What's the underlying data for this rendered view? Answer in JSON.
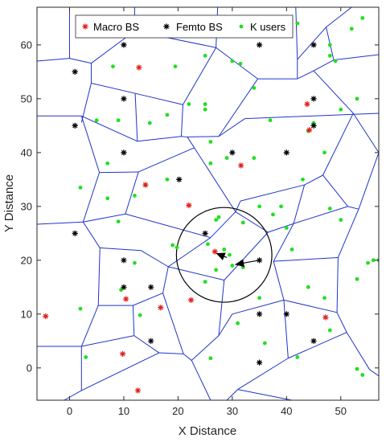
{
  "chart_data": {
    "type": "scatter",
    "xlabel": "X Distance",
    "ylabel": "Y Distance",
    "xlim": [
      -6,
      57
    ],
    "ylim": [
      -6,
      67
    ],
    "xticks": [
      0,
      10,
      20,
      30,
      40,
      50
    ],
    "yticks": [
      0,
      10,
      20,
      30,
      40,
      50,
      60
    ],
    "grid": false,
    "legend_placement": "top-center",
    "legend": [
      "Macro BS",
      "Femto BS",
      "K users"
    ],
    "colors": {
      "macro": "#e0201e",
      "femto": "#000000",
      "users": "#1fe01f",
      "voronoi": "#1f35c8",
      "circle": "#000000",
      "arrow": "#000000"
    },
    "series": [
      {
        "name": "Macro BS",
        "marker": "asterisk",
        "points": [
          [
            12.8,
            55.8
          ],
          [
            43.8,
            49
          ],
          [
            44.2,
            44.2
          ],
          [
            14,
            34
          ],
          [
            31.6,
            37.6
          ],
          [
            22,
            30.2
          ],
          [
            26.8,
            21.6
          ],
          [
            10.4,
            12.8
          ],
          [
            16.8,
            11.2
          ],
          [
            22.4,
            12.6
          ],
          [
            -4.4,
            9.6
          ],
          [
            47.2,
            9.4
          ],
          [
            9.8,
            2.6
          ],
          [
            12.6,
            -4.2
          ]
        ]
      },
      {
        "name": "Femto BS",
        "marker": "asterisk",
        "points": [
          [
            10,
            60
          ],
          [
            1,
            55
          ],
          [
            10,
            50
          ],
          [
            1,
            45
          ],
          [
            10,
            40
          ],
          [
            20.2,
            35
          ],
          [
            30,
            40
          ],
          [
            40,
            40
          ],
          [
            35,
            60
          ],
          [
            45,
            60
          ],
          [
            45,
            50
          ],
          [
            45,
            45
          ],
          [
            25,
            25
          ],
          [
            1,
            25
          ],
          [
            10,
            20
          ],
          [
            35,
            20
          ],
          [
            10,
            15
          ],
          [
            15,
            15
          ],
          [
            35,
            10
          ],
          [
            40,
            10
          ],
          [
            45,
            5
          ],
          [
            15,
            5
          ],
          [
            35,
            1
          ]
        ]
      },
      {
        "name": "K users",
        "marker": "dot",
        "points": [
          [
            3,
            65
          ],
          [
            9,
            64
          ],
          [
            14,
            64
          ],
          [
            29,
            63
          ],
          [
            42,
            64
          ],
          [
            52,
            63
          ],
          [
            38,
            62
          ],
          [
            48,
            60
          ],
          [
            48,
            58
          ],
          [
            49,
            57
          ],
          [
            54,
            65
          ],
          [
            8,
            56
          ],
          [
            19.5,
            56
          ],
          [
            31.5,
            56.5
          ],
          [
            34,
            52
          ],
          [
            25,
            48
          ],
          [
            25,
            58
          ],
          [
            30,
            57
          ],
          [
            5,
            46
          ],
          [
            9,
            46
          ],
          [
            14.8,
            45.5
          ],
          [
            18,
            47
          ],
          [
            22,
            49
          ],
          [
            25,
            49
          ],
          [
            50,
            48
          ],
          [
            53,
            50
          ],
          [
            37,
            46
          ],
          [
            44,
            44
          ],
          [
            45,
            45.5
          ],
          [
            7,
            38
          ],
          [
            18,
            35
          ],
          [
            26,
            42
          ],
          [
            29,
            39
          ],
          [
            34,
            39
          ],
          [
            26,
            38
          ],
          [
            47,
            40
          ],
          [
            43,
            35
          ],
          [
            35,
            30
          ],
          [
            37.5,
            28.5
          ],
          [
            39,
            30
          ],
          [
            48,
            29.6
          ],
          [
            50,
            27.5
          ],
          [
            2,
            33.5
          ],
          [
            7,
            31.5
          ],
          [
            9,
            27.2
          ],
          [
            12,
            32
          ],
          [
            14,
            34
          ],
          [
            27,
            27.5
          ],
          [
            27.5,
            28
          ],
          [
            32,
            27
          ],
          [
            40,
            26
          ],
          [
            19,
            22.8
          ],
          [
            19.8,
            22.4
          ],
          [
            25.5,
            23
          ],
          [
            28.5,
            22
          ],
          [
            30,
            19
          ],
          [
            27,
            18.2
          ],
          [
            32,
            18.7
          ],
          [
            29.5,
            21
          ],
          [
            41,
            22
          ],
          [
            55,
            19.5
          ],
          [
            56,
            20
          ],
          [
            57,
            20
          ],
          [
            53,
            16.5
          ],
          [
            9.5,
            14.5
          ],
          [
            12,
            19.5
          ],
          [
            13,
            9.8
          ],
          [
            2,
            11
          ],
          [
            3,
            2
          ],
          [
            25,
            16
          ],
          [
            31,
            8.3
          ],
          [
            35,
            13
          ],
          [
            36,
            4.6
          ],
          [
            26,
            1.8
          ],
          [
            44,
            15
          ],
          [
            47,
            13
          ],
          [
            48,
            7
          ],
          [
            42,
            2
          ],
          [
            53,
            -0.2
          ],
          [
            54,
            -1.3
          ]
        ]
      }
    ],
    "voronoi_edges": [
      [
        [
          0,
          67
        ],
        [
          0,
          57.5
        ]
      ],
      [
        [
          -6,
          57
        ],
        [
          0,
          57.5
        ]
      ],
      [
        [
          0,
          57.5
        ],
        [
          4,
          56.6
        ]
      ],
      [
        [
          4,
          56.6
        ],
        [
          4,
          52.9
        ]
      ],
      [
        [
          4,
          52.9
        ],
        [
          2.2,
          45.6
        ]
      ],
      [
        [
          4,
          52.9
        ],
        [
          12.1,
          51
        ]
      ],
      [
        [
          4,
          56.6
        ],
        [
          12,
          62.6
        ]
      ],
      [
        [
          12,
          62.6
        ],
        [
          12,
          67
        ]
      ],
      [
        [
          12,
          62.6
        ],
        [
          27,
          59.5
        ]
      ],
      [
        [
          27,
          59.5
        ],
        [
          27.3,
          67
        ]
      ],
      [
        [
          27,
          59.5
        ],
        [
          34.7,
          53.7
        ]
      ],
      [
        [
          -6,
          46.8
        ],
        [
          2.2,
          46.8
        ]
      ],
      [
        [
          2.2,
          46.8
        ],
        [
          12.5,
          42.1
        ]
      ],
      [
        [
          12.5,
          42.1
        ],
        [
          20.6,
          43
        ]
      ],
      [
        [
          20.6,
          43
        ],
        [
          20.9,
          48.9
        ]
      ],
      [
        [
          20.9,
          48.9
        ],
        [
          12.1,
          51
        ]
      ],
      [
        [
          12.1,
          51
        ],
        [
          12.5,
          42.1
        ]
      ],
      [
        [
          20.6,
          43
        ],
        [
          21.7,
          42.9
        ]
      ],
      [
        [
          21.7,
          42.9
        ],
        [
          27.5,
          43
        ]
      ],
      [
        [
          21.7,
          42.9
        ],
        [
          23,
          40.9
        ]
      ],
      [
        [
          27.5,
          43
        ],
        [
          34.7,
          53.7
        ]
      ],
      [
        [
          27.5,
          43
        ],
        [
          32.3,
          46.3
        ]
      ],
      [
        [
          32.3,
          46.3
        ],
        [
          57,
          47.3
        ]
      ],
      [
        [
          20.9,
          48.9
        ],
        [
          27,
          59.5
        ]
      ],
      [
        [
          34.7,
          53.7
        ],
        [
          42,
          53.7
        ]
      ],
      [
        [
          42,
          53.7
        ],
        [
          42,
          57.3
        ]
      ],
      [
        [
          42,
          57.3
        ],
        [
          41.7,
          67
        ]
      ],
      [
        [
          42,
          57.3
        ],
        [
          47.3,
          63.3
        ]
      ],
      [
        [
          47.3,
          63.3
        ],
        [
          52,
          67
        ]
      ],
      [
        [
          47.3,
          63.3
        ],
        [
          48.7,
          57.2
        ]
      ],
      [
        [
          48.7,
          57.2
        ],
        [
          57,
          58.2
        ]
      ],
      [
        [
          48.7,
          57.2
        ],
        [
          45,
          55.2
        ]
      ],
      [
        [
          45,
          55.2
        ],
        [
          42,
          53.7
        ]
      ],
      [
        [
          45,
          55.2
        ],
        [
          52.3,
          47.3
        ]
      ],
      [
        [
          52.3,
          47.3
        ],
        [
          57,
          40
        ]
      ],
      [
        [
          57,
          40
        ],
        [
          53.3,
          29.5
        ]
      ],
      [
        [
          53.3,
          29.5
        ],
        [
          51.3,
          30
        ]
      ],
      [
        [
          51.3,
          30
        ],
        [
          46.7,
          35.8
        ]
      ],
      [
        [
          46.7,
          35.8
        ],
        [
          52.3,
          47.3
        ]
      ],
      [
        [
          46.7,
          35.8
        ],
        [
          43.3,
          34
        ]
      ],
      [
        [
          43.3,
          34
        ],
        [
          41.3,
          26.8
        ]
      ],
      [
        [
          41.3,
          26.8
        ],
        [
          51.3,
          30
        ]
      ],
      [
        [
          41.3,
          26.8
        ],
        [
          36.6,
          25.2
        ]
      ],
      [
        [
          36.6,
          25.2
        ],
        [
          30.6,
          29
        ]
      ],
      [
        [
          30.6,
          29
        ],
        [
          23,
          40.9
        ]
      ],
      [
        [
          23,
          40.9
        ],
        [
          12.7,
          36.4
        ]
      ],
      [
        [
          12.7,
          36.4
        ],
        [
          5.5,
          36.3
        ]
      ],
      [
        [
          5.5,
          36.3
        ],
        [
          2.2,
          46.8
        ]
      ],
      [
        [
          12.7,
          36.4
        ],
        [
          10.3,
          28.6
        ]
      ],
      [
        [
          5.5,
          36.3
        ],
        [
          2.5,
          27.1
        ]
      ],
      [
        [
          2.5,
          27.1
        ],
        [
          -6,
          26.7
        ]
      ],
      [
        [
          2.5,
          27.1
        ],
        [
          10.3,
          28.6
        ]
      ],
      [
        [
          10.3,
          28.6
        ],
        [
          26,
          24.2
        ]
      ],
      [
        [
          26,
          24.2
        ],
        [
          30.6,
          29
        ]
      ],
      [
        [
          30.6,
          29
        ],
        [
          31.5,
          31
        ]
      ],
      [
        [
          31.5,
          31
        ],
        [
          43.3,
          34
        ]
      ],
      [
        [
          2.5,
          27.1
        ],
        [
          5.6,
          22.3
        ]
      ],
      [
        [
          5.6,
          22.3
        ],
        [
          13.2,
          21.8
        ]
      ],
      [
        [
          13.2,
          21.8
        ],
        [
          18.2,
          18.8
        ]
      ],
      [
        [
          18.2,
          18.8
        ],
        [
          26,
          24.2
        ]
      ],
      [
        [
          18.2,
          18.8
        ],
        [
          17.2,
          13.9
        ]
      ],
      [
        [
          5.6,
          22.3
        ],
        [
          5.3,
          11.6
        ]
      ],
      [
        [
          5.3,
          11.6
        ],
        [
          11.7,
          11.6
        ]
      ],
      [
        [
          11.7,
          11.6
        ],
        [
          17.2,
          13.9
        ]
      ],
      [
        [
          11.7,
          11.6
        ],
        [
          11.9,
          6
        ]
      ],
      [
        [
          5.3,
          11.6
        ],
        [
          2.2,
          4
        ]
      ],
      [
        [
          2.2,
          4
        ],
        [
          -6,
          4
        ]
      ],
      [
        [
          2.2,
          4
        ],
        [
          11.9,
          6
        ]
      ],
      [
        [
          11.9,
          6
        ],
        [
          16.5,
          2.8
        ]
      ],
      [
        [
          16.5,
          2.8
        ],
        [
          21,
          2.6
        ]
      ],
      [
        [
          21,
          2.6
        ],
        [
          22.5,
          1.4
        ]
      ],
      [
        [
          22.5,
          1.4
        ],
        [
          27.5,
          6
        ]
      ],
      [
        [
          27.5,
          6
        ],
        [
          28.5,
          16.3
        ]
      ],
      [
        [
          28.5,
          16.3
        ],
        [
          18.2,
          18.8
        ]
      ],
      [
        [
          28.5,
          16.3
        ],
        [
          36.6,
          25.2
        ]
      ],
      [
        [
          27.5,
          6
        ],
        [
          30,
          10
        ]
      ],
      [
        [
          22.5,
          1.4
        ],
        [
          26,
          -6
        ]
      ],
      [
        [
          30,
          10
        ],
        [
          39.5,
          12.6
        ]
      ],
      [
        [
          39.5,
          12.6
        ],
        [
          37.6,
          19.8
        ]
      ],
      [
        [
          37.6,
          19.8
        ],
        [
          41.3,
          26.8
        ]
      ],
      [
        [
          37.6,
          19.8
        ],
        [
          49.5,
          20.5
        ]
      ],
      [
        [
          49.5,
          20.5
        ],
        [
          53.3,
          29.5
        ]
      ],
      [
        [
          49.5,
          20.5
        ],
        [
          49.3,
          10.3
        ]
      ],
      [
        [
          49.3,
          10.3
        ],
        [
          39.5,
          12.6
        ]
      ],
      [
        [
          49.3,
          10.3
        ],
        [
          51.1,
          6.6
        ]
      ],
      [
        [
          51.1,
          6.6
        ],
        [
          55.3,
          -0.3
        ]
      ],
      [
        [
          55.3,
          -0.3
        ],
        [
          57,
          -1.5
        ]
      ],
      [
        [
          51.1,
          6.6
        ],
        [
          40.3,
          1.8
        ]
      ],
      [
        [
          40.3,
          1.8
        ],
        [
          31,
          -4
        ]
      ],
      [
        [
          31,
          -4
        ],
        [
          29,
          -6
        ]
      ],
      [
        [
          31,
          -4
        ],
        [
          41,
          -6
        ]
      ],
      [
        [
          40.3,
          1.8
        ],
        [
          39.5,
          12.6
        ]
      ],
      [
        [
          17.2,
          13.9
        ],
        [
          21,
          2.6
        ]
      ],
      [
        [
          -1,
          -6
        ],
        [
          2.2,
          -4.2
        ]
      ],
      [
        [
          2.2,
          -4.2
        ],
        [
          16.5,
          2.8
        ]
      ],
      [
        [
          2.2,
          -4.2
        ],
        [
          2.2,
          4
        ]
      ]
    ],
    "circle": {
      "cx": 28.5,
      "cy": 21,
      "r": 8.8
    },
    "arrows": [
      {
        "from": [
          35,
          20
        ],
        "to": [
          30.5,
          19.2
        ]
      },
      {
        "from": [
          29,
          20.5
        ],
        "to": [
          27,
          21.3
        ]
      }
    ]
  }
}
